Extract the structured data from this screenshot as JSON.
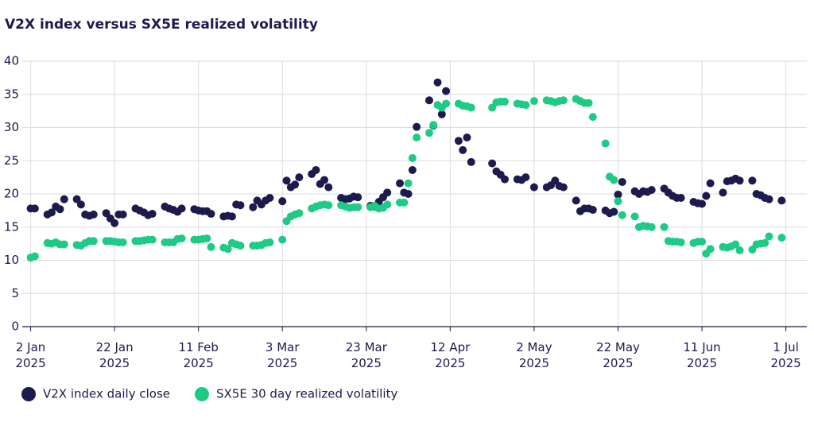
{
  "chart_data": {
    "type": "scatter",
    "title": "V2X index versus SX5E realized volatility",
    "x": [
      "2025-01-02",
      "2025-01-03",
      "2025-01-06",
      "2025-01-07",
      "2025-01-08",
      "2025-01-09",
      "2025-01-10",
      "2025-01-13",
      "2025-01-14",
      "2025-01-15",
      "2025-01-16",
      "2025-01-17",
      "2025-01-20",
      "2025-01-21",
      "2025-01-22",
      "2025-01-23",
      "2025-01-24",
      "2025-01-27",
      "2025-01-28",
      "2025-01-29",
      "2025-01-30",
      "2025-01-31",
      "2025-02-03",
      "2025-02-04",
      "2025-02-05",
      "2025-02-06",
      "2025-02-07",
      "2025-02-10",
      "2025-02-11",
      "2025-02-12",
      "2025-02-13",
      "2025-02-14",
      "2025-02-17",
      "2025-02-18",
      "2025-02-19",
      "2025-02-20",
      "2025-02-21",
      "2025-02-24",
      "2025-02-25",
      "2025-02-26",
      "2025-02-27",
      "2025-02-28",
      "2025-03-03",
      "2025-03-04",
      "2025-03-05",
      "2025-03-06",
      "2025-03-07",
      "2025-03-10",
      "2025-03-11",
      "2025-03-12",
      "2025-03-13",
      "2025-03-14",
      "2025-03-17",
      "2025-03-18",
      "2025-03-19",
      "2025-03-20",
      "2025-03-21",
      "2025-03-24",
      "2025-03-25",
      "2025-03-26",
      "2025-03-27",
      "2025-03-28",
      "2025-03-31",
      "2025-04-01",
      "2025-04-02",
      "2025-04-03",
      "2025-04-04",
      "2025-04-07",
      "2025-04-08",
      "2025-04-09",
      "2025-04-10",
      "2025-04-11",
      "2025-04-14",
      "2025-04-15",
      "2025-04-16",
      "2025-04-17",
      "2025-04-22",
      "2025-04-23",
      "2025-04-24",
      "2025-04-25",
      "2025-04-28",
      "2025-04-29",
      "2025-04-30",
      "2025-05-02",
      "2025-05-05",
      "2025-05-06",
      "2025-05-07",
      "2025-05-08",
      "2025-05-09",
      "2025-05-12",
      "2025-05-13",
      "2025-05-14",
      "2025-05-15",
      "2025-05-16",
      "2025-05-19",
      "2025-05-20",
      "2025-05-21",
      "2025-05-22",
      "2025-05-23",
      "2025-05-26",
      "2025-05-27",
      "2025-05-28",
      "2025-05-29",
      "2025-05-30",
      "2025-06-02",
      "2025-06-03",
      "2025-06-04",
      "2025-06-05",
      "2025-06-06",
      "2025-06-09",
      "2025-06-10",
      "2025-06-11",
      "2025-06-12",
      "2025-06-13",
      "2025-06-16",
      "2025-06-17",
      "2025-06-18",
      "2025-06-19",
      "2025-06-20",
      "2025-06-23",
      "2025-06-24",
      "2025-06-25",
      "2025-06-26",
      "2025-06-27",
      "2025-06-30"
    ],
    "series": [
      {
        "name": "V2X index daily close",
        "color": "#1d1a4e",
        "values": [
          17.8,
          17.8,
          16.9,
          17.2,
          18.1,
          17.7,
          19.2,
          19.2,
          18.4,
          16.9,
          16.7,
          16.9,
          17.1,
          16.3,
          15.6,
          16.9,
          16.9,
          17.8,
          17.5,
          17.2,
          16.8,
          17.0,
          18.1,
          17.8,
          17.6,
          17.3,
          17.8,
          17.7,
          17.5,
          17.4,
          17.4,
          17.0,
          16.6,
          16.7,
          16.6,
          18.4,
          18.3,
          18.0,
          19.0,
          18.4,
          19.0,
          19.4,
          18.9,
          22.0,
          21.0,
          21.4,
          22.5,
          23.0,
          23.6,
          21.5,
          22.1,
          21.0,
          19.4,
          19.2,
          19.3,
          19.6,
          19.5,
          18.2,
          18.1,
          18.8,
          19.5,
          20.2,
          21.6,
          20.2,
          20.0,
          23.6,
          30.1,
          34.1,
          30.3,
          36.8,
          32.0,
          35.5,
          28.0,
          26.6,
          28.5,
          24.8,
          24.6,
          23.4,
          22.9,
          22.2,
          22.2,
          22.1,
          22.5,
          21.0,
          21.0,
          21.3,
          22.0,
          21.2,
          21.0,
          19.0,
          17.4,
          17.8,
          17.8,
          17.6,
          17.5,
          17.1,
          17.3,
          19.9,
          21.8,
          20.4,
          20.0,
          20.4,
          20.3,
          20.6,
          20.8,
          20.2,
          19.7,
          19.4,
          19.4,
          18.8,
          18.6,
          18.5,
          19.7,
          21.6,
          20.2,
          21.9,
          22.0,
          22.3,
          22.0,
          22.0,
          20.0,
          19.8,
          19.4,
          19.2,
          19.0
        ]
      },
      {
        "name": "SX5E 30 day realized volatility",
        "color": "#1ecb85",
        "values": [
          10.4,
          10.6,
          12.6,
          12.5,
          12.7,
          12.4,
          12.4,
          12.3,
          12.2,
          12.6,
          12.9,
          12.9,
          12.9,
          12.9,
          12.8,
          12.7,
          12.7,
          12.9,
          12.9,
          13.0,
          13.1,
          13.1,
          12.7,
          12.7,
          12.7,
          13.2,
          13.3,
          13.1,
          13.1,
          13.2,
          13.3,
          12.0,
          11.9,
          11.7,
          12.6,
          12.4,
          12.2,
          12.2,
          12.2,
          12.3,
          12.6,
          12.7,
          13.1,
          15.9,
          16.6,
          16.9,
          17.1,
          17.8,
          18.1,
          18.3,
          18.4,
          18.3,
          18.3,
          18.1,
          17.9,
          18.0,
          18.0,
          18.0,
          18.2,
          17.8,
          17.9,
          18.4,
          18.7,
          18.7,
          21.6,
          25.4,
          28.5,
          29.2,
          30.4,
          33.4,
          33.0,
          33.6,
          33.6,
          33.3,
          33.2,
          33.0,
          33.0,
          33.8,
          33.9,
          33.9,
          33.6,
          33.5,
          33.4,
          34.0,
          34.1,
          34.0,
          33.8,
          34.0,
          34.1,
          34.3,
          34.0,
          33.7,
          33.7,
          31.6,
          27.6,
          22.6,
          22.1,
          18.9,
          16.8,
          16.6,
          15.0,
          15.2,
          15.1,
          15.0,
          15.0,
          12.9,
          12.8,
          12.8,
          12.7,
          12.6,
          12.8,
          12.8,
          11.0,
          11.7,
          12.0,
          11.9,
          12.1,
          12.4,
          11.5,
          11.6,
          12.4,
          12.5,
          12.6,
          13.6,
          13.4
        ]
      }
    ],
    "xlim": [
      "2024-12-31",
      "2025-07-06"
    ],
    "xticks": [
      {
        "value": "2025-01-02",
        "label": "2 Jan 2025"
      },
      {
        "value": "2025-01-22",
        "label": "22 Jan 2025"
      },
      {
        "value": "2025-02-11",
        "label": "11 Feb 2025"
      },
      {
        "value": "2025-03-03",
        "label": "3 Mar 2025"
      },
      {
        "value": "2025-03-23",
        "label": "23 Mar 2025"
      },
      {
        "value": "2025-04-12",
        "label": "12 Apr 2025"
      },
      {
        "value": "2025-05-02",
        "label": "2 May 2025"
      },
      {
        "value": "2025-05-22",
        "label": "22 May 2025"
      },
      {
        "value": "2025-06-11",
        "label": "11 Jun 2025"
      },
      {
        "value": "2025-07-01",
        "label": "1 Jul 2025"
      }
    ],
    "ylim": [
      0,
      40
    ],
    "yticks": [
      0,
      5,
      10,
      15,
      20,
      25,
      30,
      35,
      40
    ],
    "grid": true,
    "legend": "bottom"
  }
}
